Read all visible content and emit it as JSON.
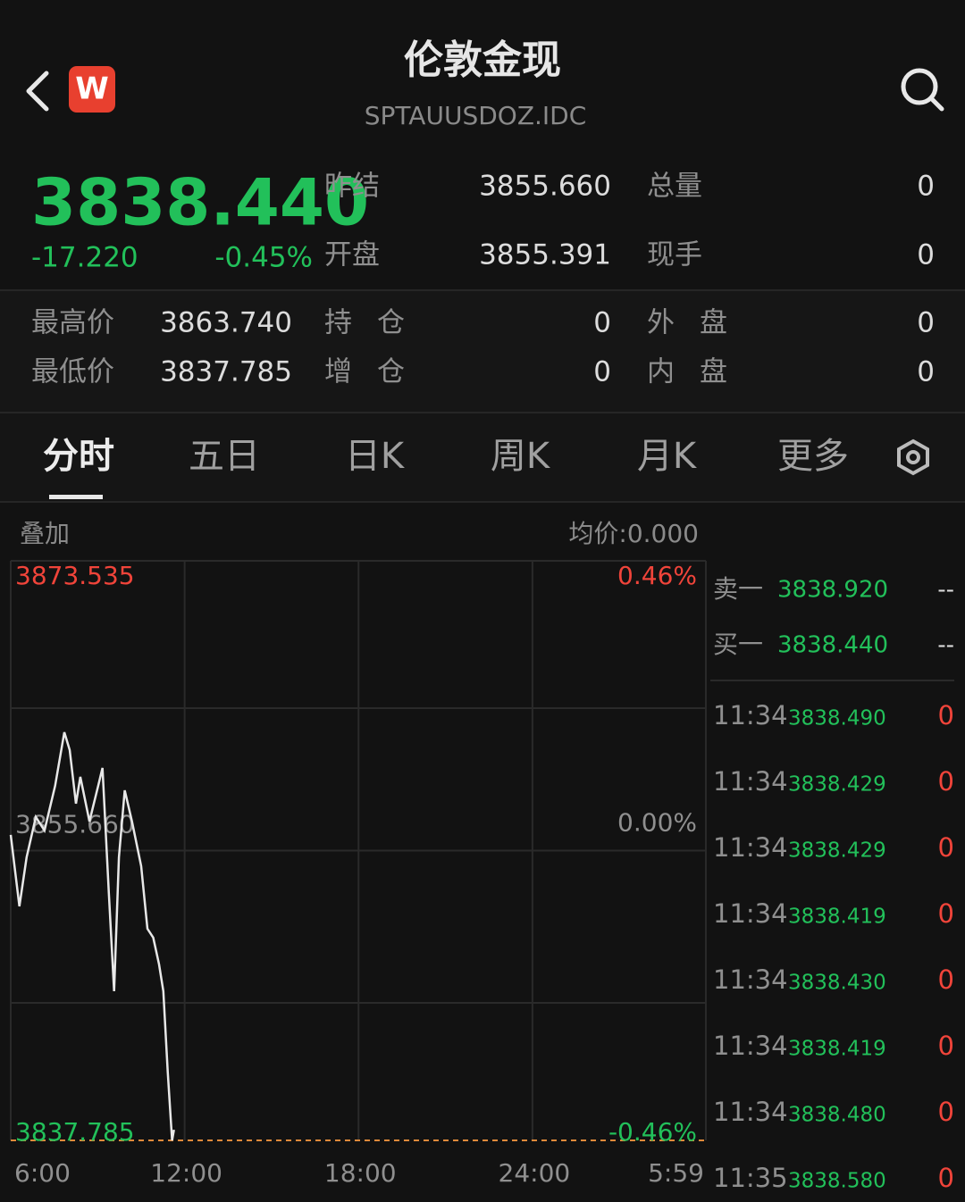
{
  "header": {
    "title": "伦敦金现",
    "code": "SPTAUUSDOZ.IDC",
    "logo": "W"
  },
  "quote": {
    "price": "3838.440",
    "change": "-17.220",
    "change_pct": "-0.45%",
    "fields": [
      [
        "昨结",
        "3855.660"
      ],
      [
        "总量",
        "0"
      ],
      [
        "开盘",
        "3855.391"
      ],
      [
        "现手",
        "0"
      ]
    ]
  },
  "stats": [
    [
      "最高价",
      "3863.740"
    ],
    [
      "持仓",
      "0"
    ],
    [
      "外盘",
      "0"
    ],
    [
      "最低价",
      "3837.785"
    ],
    [
      "增仓",
      "0"
    ],
    [
      "内盘",
      "0"
    ]
  ],
  "tabs": [
    "分时",
    "五日",
    "日K",
    "周K",
    "月K",
    "更多"
  ],
  "chart_toolbar": {
    "overlay": "叠加",
    "avg_price": "均价:0.000"
  },
  "chart_data": {
    "type": "line",
    "color": "#e8e8e8",
    "x": [
      0,
      18,
      33,
      52,
      70,
      92,
      111,
      122,
      135,
      144,
      163,
      181,
      190,
      203,
      214,
      224,
      236,
      251,
      270,
      283,
      295,
      307,
      316,
      325,
      334,
      338
    ],
    "values": [
      3856.63,
      3852.22,
      3855.25,
      3857.73,
      3856.9,
      3859.66,
      3862.96,
      3861.86,
      3858.56,
      3860.21,
      3857.46,
      3859.66,
      3860.76,
      3853.05,
      3846.99,
      3855.25,
      3859.38,
      3857.46,
      3854.7,
      3850.84,
      3850.29,
      3848.64,
      3846.99,
      3842.03,
      3837.785,
      3838.44
    ],
    "xlim": [
      0,
      1439
    ],
    "xticks": [
      {
        "value": 0,
        "label": "6:00"
      },
      {
        "value": 360,
        "label": "12:00"
      },
      {
        "value": 720,
        "label": "18:00"
      },
      {
        "value": 1080,
        "label": "24:00"
      },
      {
        "value": 1439,
        "label": "5:59"
      }
    ],
    "ylim": [
      3837.785,
      3873.535
    ],
    "yticks": [
      3873.535,
      {
        "value": 3855.66,
        "label": "3855.660"
      },
      3837.785
    ],
    "y2lim": [
      -0.46,
      0.46
    ],
    "y2ticks": [
      {
        "value": 0.46,
        "label": "0.46%"
      },
      {
        "value": 0,
        "label": "0.00%"
      },
      {
        "value": -0.46,
        "label": "-0.46%"
      }
    ],
    "grid": true
  },
  "order_book": [
    [
      "卖一",
      "3838.920",
      "--"
    ],
    [
      "买一",
      "3838.440",
      "--"
    ]
  ],
  "trades": [
    [
      "11:34",
      "3838.490",
      "0"
    ],
    [
      "11:34",
      "3838.429",
      "0"
    ],
    [
      "11:34",
      "3838.429",
      "0"
    ],
    [
      "11:34",
      "3838.419",
      "0"
    ],
    [
      "11:34",
      "3838.430",
      "0"
    ],
    [
      "11:34",
      "3838.419",
      "0"
    ],
    [
      "11:34",
      "3838.480",
      "0"
    ],
    [
      "11:35",
      "3838.580",
      "0"
    ]
  ]
}
